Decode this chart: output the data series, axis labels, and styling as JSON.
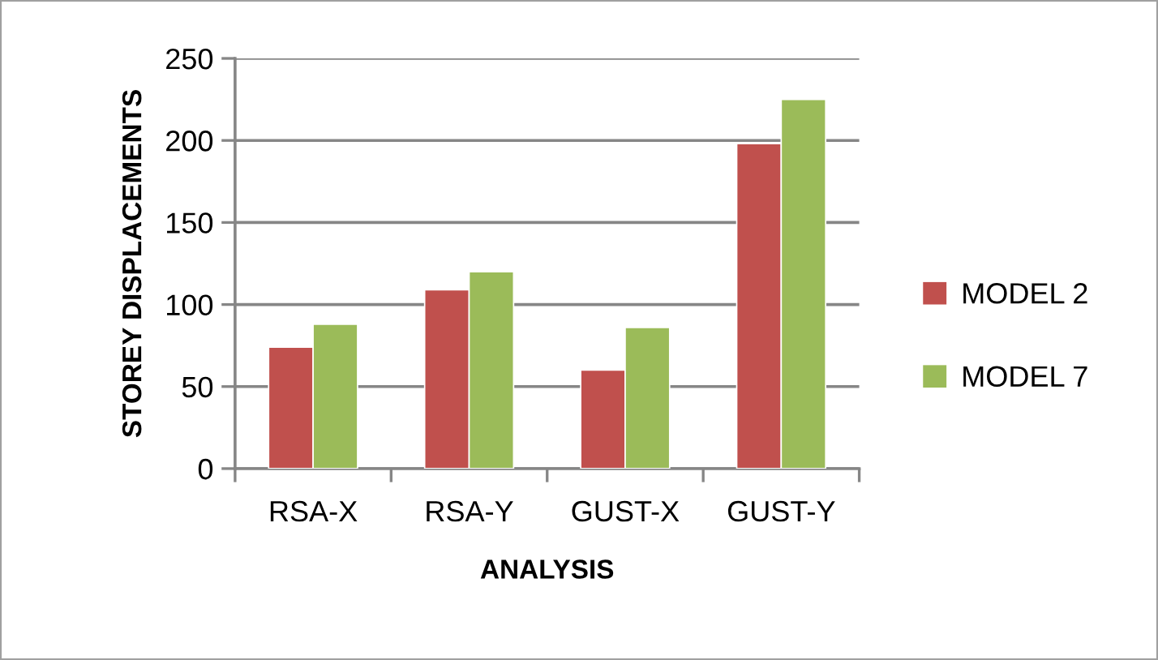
{
  "chart_data": {
    "type": "bar",
    "xlabel": "ANALYSIS",
    "ylabel": "STOREY DISPLACEMENTS",
    "categories": [
      "RSA-X",
      "RSA-Y",
      "GUST-X",
      "GUST-Y"
    ],
    "series": [
      {
        "name": "MODEL 2",
        "color": "#c0504d",
        "values": [
          74,
          109,
          60,
          198
        ]
      },
      {
        "name": "MODEL 7",
        "color": "#9bbb59",
        "values": [
          88,
          120,
          86,
          225
        ]
      }
    ],
    "ylim": [
      0,
      250
    ],
    "yticks": [
      0,
      50,
      100,
      150,
      200,
      250
    ],
    "grid": "y",
    "legend": "right"
  }
}
